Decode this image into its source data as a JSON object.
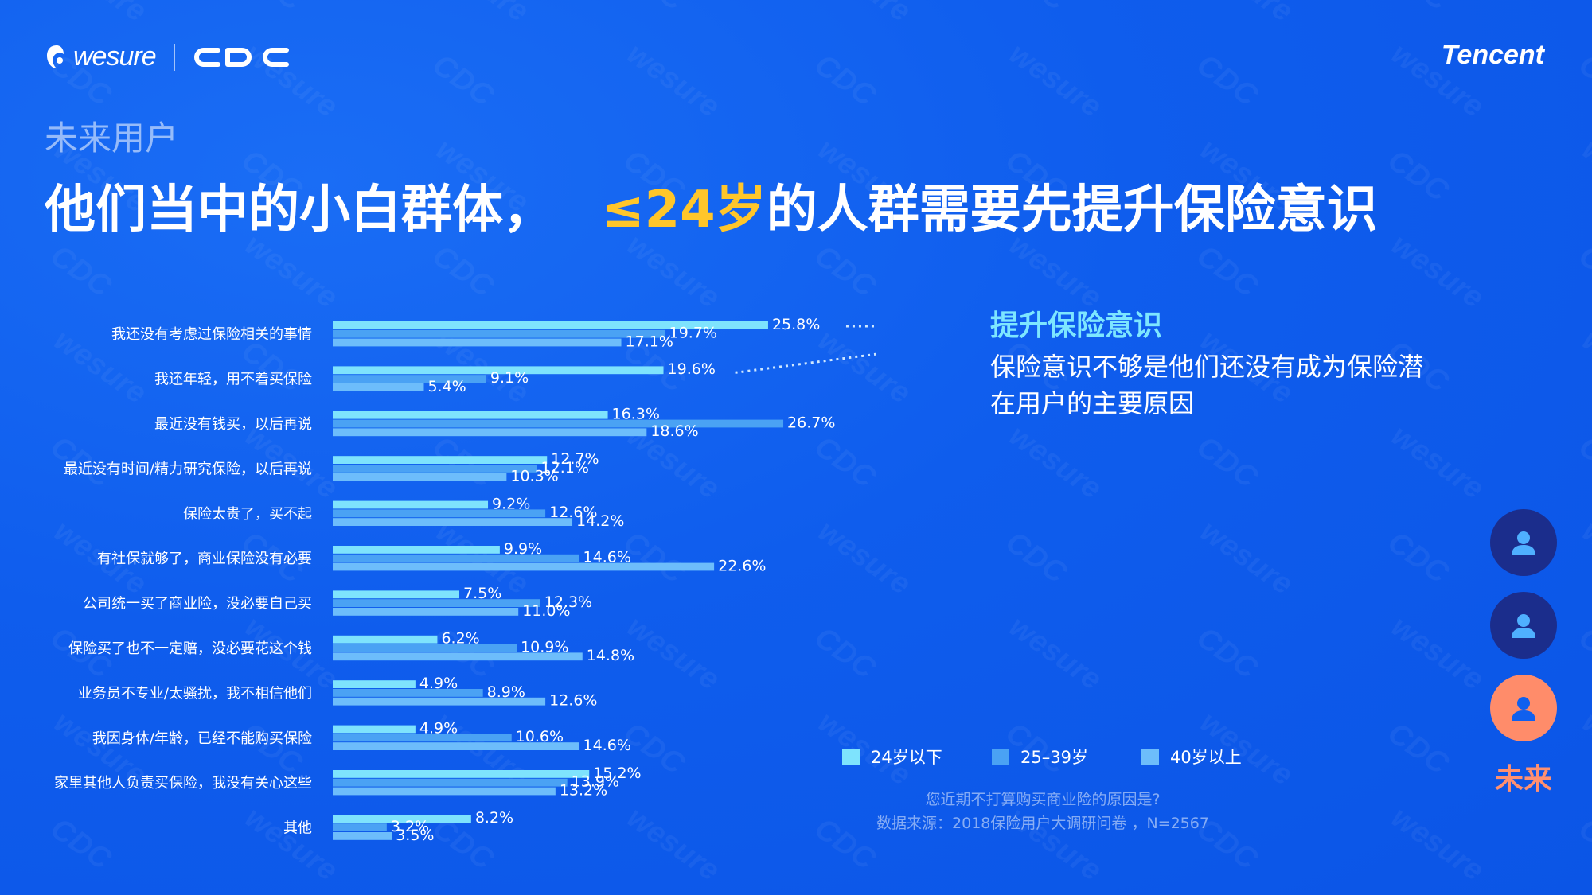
{
  "branding": {
    "wesure_label": "wesure",
    "cdc_label": "CDC",
    "tencent_label": "Tencent"
  },
  "header": {
    "subtitle": "未来用户",
    "title_main": "他们当中的小白群体，",
    "title_highlight": "≤24岁",
    "title_rest": "的人群需要先提升保险意识"
  },
  "insight": {
    "title": "提升保险意识",
    "body": "保险意识不够是他们还没有成为保险潜在用户的主要原因"
  },
  "legend": [
    {
      "label": "24岁以下",
      "color": "#7ee3fd"
    },
    {
      "label": "25–39岁",
      "color": "#4aa2f4"
    },
    {
      "label": "40岁以上",
      "color": "#6dbdfb"
    }
  ],
  "footnote": {
    "question": "您近期不打算购买商业险的原因是?",
    "source": "数据来源：2018保险用户大调研问卷 ，N=2567"
  },
  "persona": {
    "active_label": "未来",
    "colors": [
      "#1b2d8c",
      "#1b2d8c",
      "#ff8c6a"
    ]
  },
  "chart_data": {
    "type": "bar",
    "orientation": "horizontal",
    "categories": [
      "我还没有考虑过保险相关的事情",
      "我还年轻，用不着买保险",
      "最近没有钱买，以后再说",
      "最近没有时间/精力研究保险，以后再说",
      "保险太贵了，买不起",
      "有社保就够了，商业保险没有必要",
      "公司统一买了商业险，没必要自己买",
      "保险买了也不一定赔，没必要花这个钱",
      "业务员不专业/太骚扰，我不相信他们",
      "我因身体/年龄，已经不能购买保险",
      "家里其他人负责买保险，我没有关心这些",
      "其他"
    ],
    "series": [
      {
        "name": "24岁以下",
        "color": "#7ee3fd",
        "values": [
          25.8,
          19.6,
          16.3,
          12.7,
          9.2,
          9.9,
          7.5,
          6.2,
          4.9,
          4.9,
          15.2,
          8.2
        ],
        "labels": [
          "25.8%",
          "19.6%",
          "16.3%",
          "12.7%",
          "9.2%",
          "9.9%",
          "7.5%",
          "6.2%",
          "4.9%",
          "4.9%",
          "15.2%",
          "8.2%"
        ]
      },
      {
        "name": "25–39岁",
        "color": "#4aa2f4",
        "values": [
          19.7,
          9.1,
          26.7,
          12.1,
          12.6,
          14.6,
          12.3,
          10.9,
          8.9,
          10.6,
          13.9,
          3.2
        ],
        "labels": [
          "19.7%",
          "9.1%",
          "26.7%",
          "12.1%",
          "12.6%",
          "14.6%",
          "12.3%",
          "10.9%",
          "8.9%",
          "10.6%",
          "13.9%",
          "3.2%"
        ]
      },
      {
        "name": "40岁以上",
        "color": "#6dbdfb",
        "values": [
          17.1,
          5.4,
          18.6,
          10.3,
          14.2,
          22.6,
          11.0,
          14.8,
          12.6,
          14.6,
          13.2,
          3.5
        ],
        "labels": [
          "17.1%",
          "5.4%",
          "18.6%",
          "10.3%",
          "14.2%",
          "22.6%",
          "11.0%",
          "14.8%",
          "12.6%",
          "14.6%",
          "13.2%",
          "3.5%"
        ]
      }
    ],
    "xlim": [
      0,
      30
    ],
    "grid": false,
    "legend_position": "bottom-right"
  }
}
